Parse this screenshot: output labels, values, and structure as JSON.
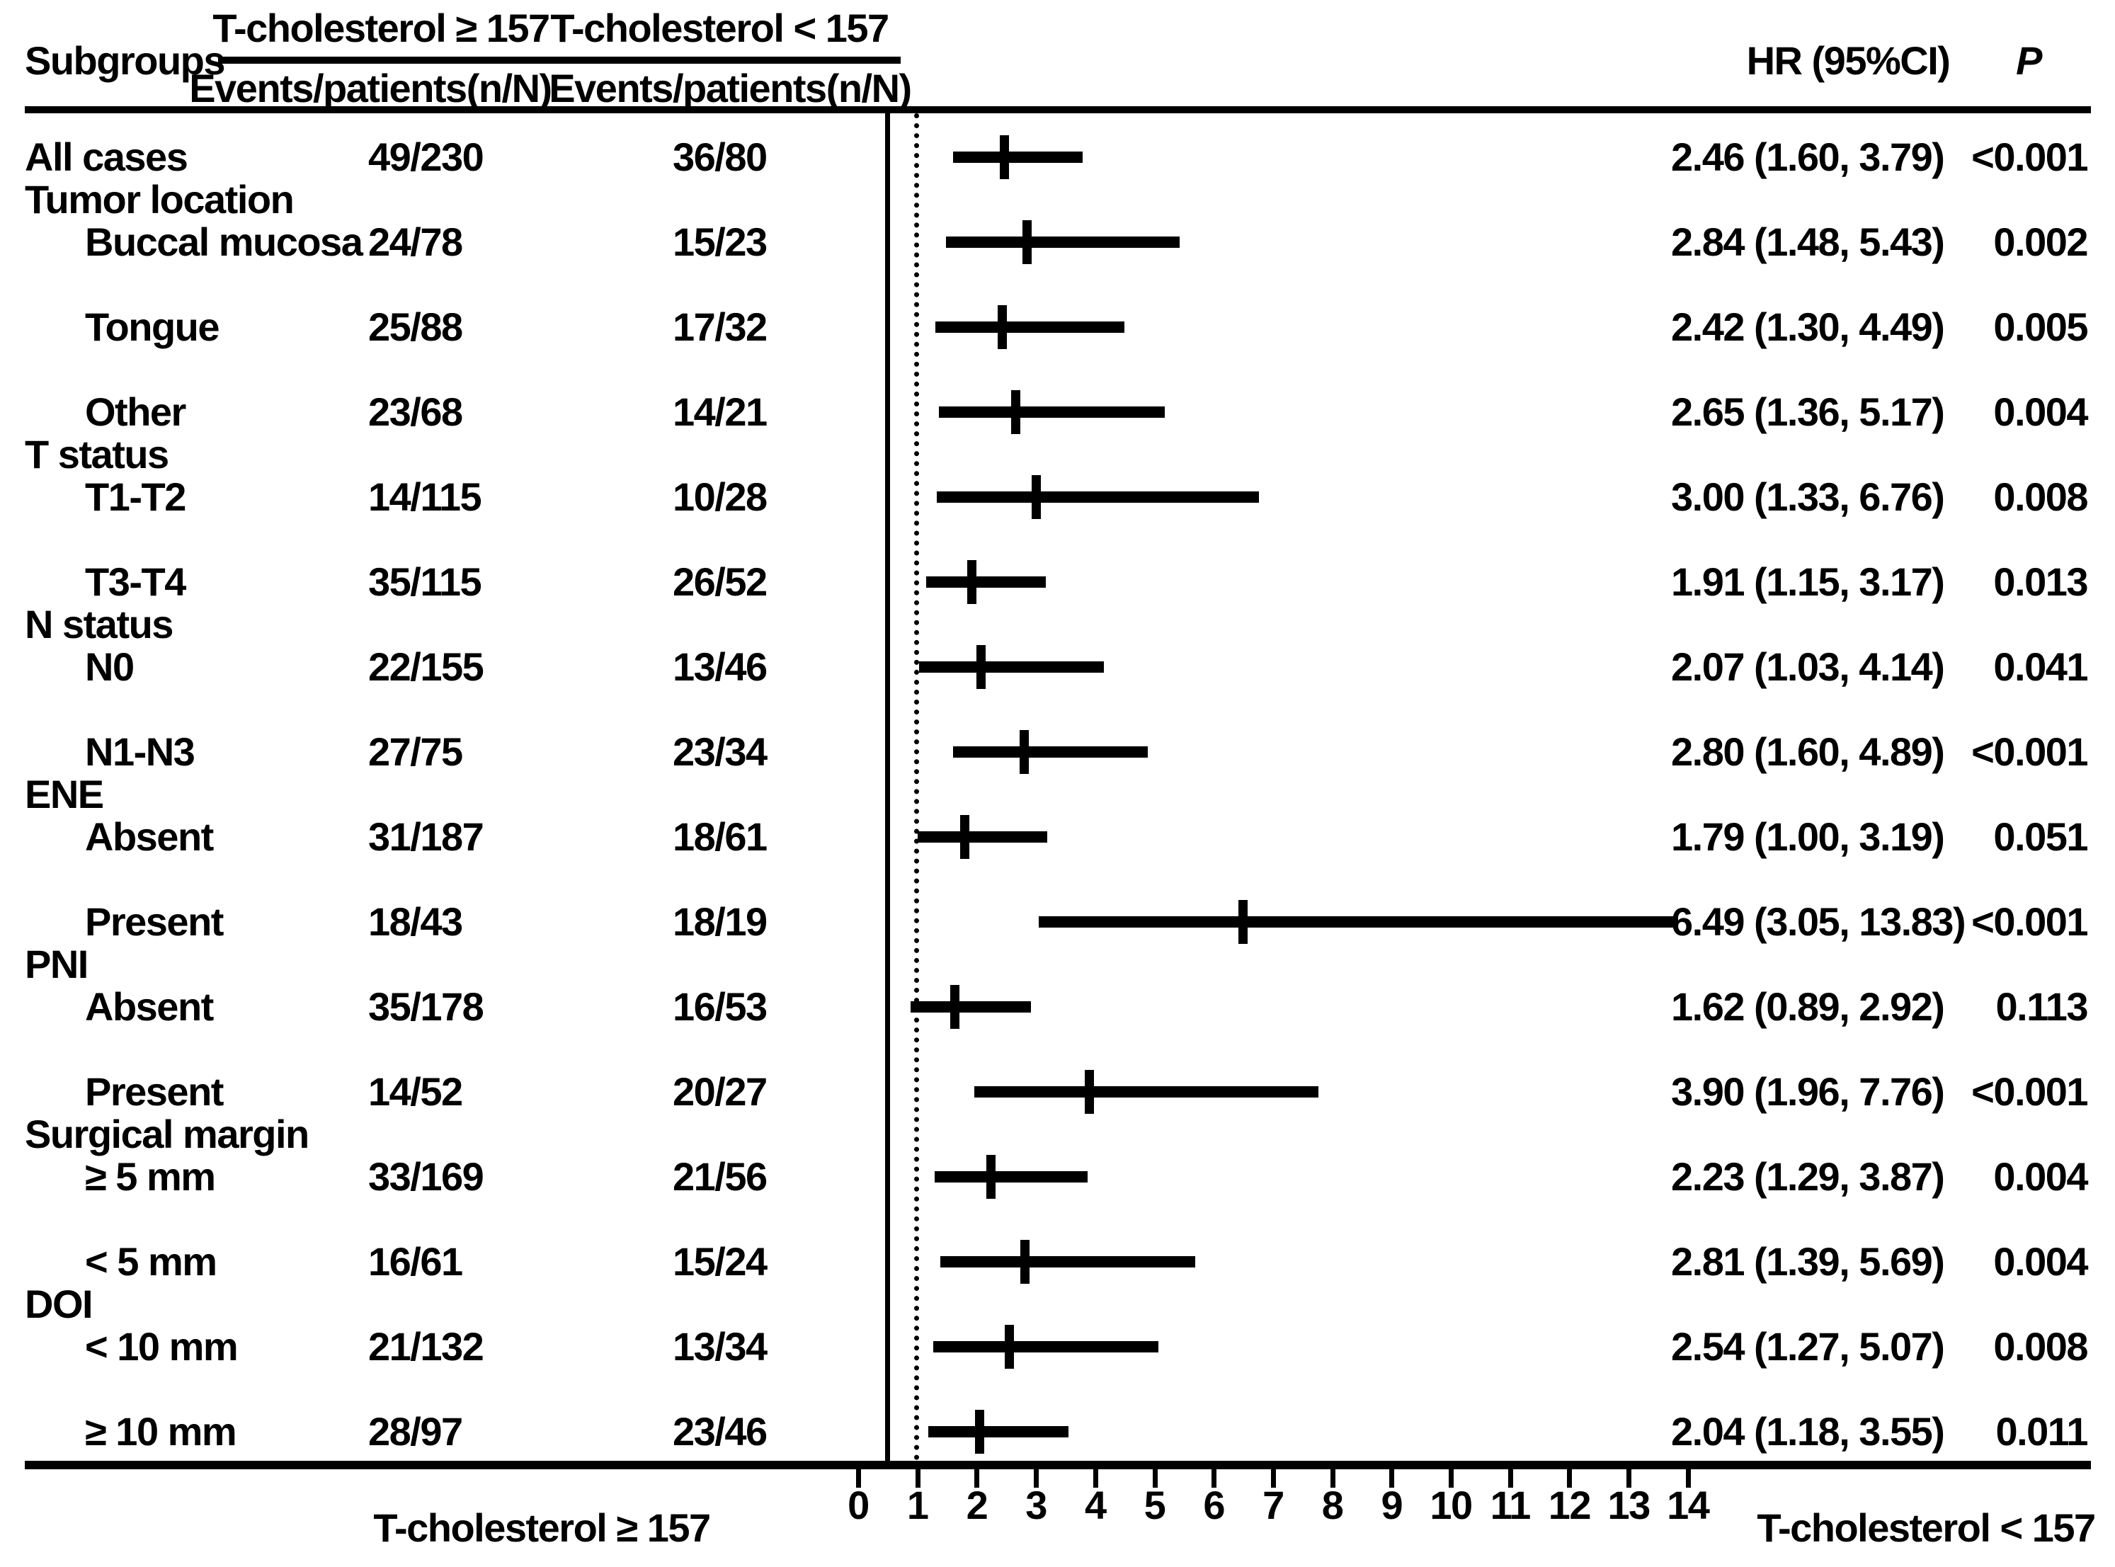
{
  "colors": {
    "ink": "#000000",
    "background": "#ffffff"
  },
  "header": {
    "subgroups_label": "Subgroups",
    "group1_label": "T-cholesterol ≥ 157",
    "group2_label": "T-cholesterol < 157",
    "events_label1": "Events/patients(n/N)",
    "events_label2": "Events/patients(n/N)",
    "hr_label": "HR (95%CI)",
    "p_label": "P"
  },
  "footer": {
    "left_label": "T-cholesterol ≥ 157",
    "right_label": "T-cholesterol < 157"
  },
  "chart_data": {
    "type": "forest",
    "xlabel_ticks": [
      "0",
      "1",
      "2",
      "3",
      "4",
      "5",
      "6",
      "7",
      "8",
      "9",
      "10",
      "11",
      "12",
      "13",
      "14"
    ],
    "x_axis": {
      "min": 0,
      "max": 14,
      "reference_line": 1.0,
      "grid": false
    },
    "columns": [
      "Subgroups",
      "Events/patients(n/N) T-cholesterol ≥ 157",
      "Events/patients(n/N) T-cholesterol < 157",
      "HR (95%CI)",
      "P"
    ],
    "rows": [
      {
        "type": "data",
        "label": "All cases",
        "indent": 0,
        "events_ge157": "49/230",
        "events_lt157": "36/80",
        "hr": 2.46,
        "ci_low": 1.6,
        "ci_high": 3.79,
        "hr_ci_text": "2.46 (1.60, 3.79)",
        "p": "<0.001"
      },
      {
        "type": "category",
        "label": "Tumor location"
      },
      {
        "type": "data",
        "label": "Buccal mucosa",
        "indent": 1,
        "events_ge157": "24/78",
        "events_lt157": "15/23",
        "hr": 2.84,
        "ci_low": 1.48,
        "ci_high": 5.43,
        "hr_ci_text": "2.84 (1.48, 5.43)",
        "p": "0.002"
      },
      {
        "type": "data",
        "label": "Tongue",
        "indent": 1,
        "events_ge157": "25/88",
        "events_lt157": "17/32",
        "hr": 2.42,
        "ci_low": 1.3,
        "ci_high": 4.49,
        "hr_ci_text": "2.42 (1.30, 4.49)",
        "p": "0.005"
      },
      {
        "type": "data",
        "label": "Other",
        "indent": 1,
        "events_ge157": "23/68",
        "events_lt157": "14/21",
        "hr": 2.65,
        "ci_low": 1.36,
        "ci_high": 5.17,
        "hr_ci_text": "2.65 (1.36, 5.17)",
        "p": "0.004"
      },
      {
        "type": "category",
        "label": "T status"
      },
      {
        "type": "data",
        "label": "T1-T2",
        "indent": 1,
        "events_ge157": "14/115",
        "events_lt157": "10/28",
        "hr": 3.0,
        "ci_low": 1.33,
        "ci_high": 6.76,
        "hr_ci_text": "3.00 (1.33, 6.76)",
        "p": "0.008"
      },
      {
        "type": "data",
        "label": "T3-T4",
        "indent": 1,
        "events_ge157": "35/115",
        "events_lt157": "26/52",
        "hr": 1.91,
        "ci_low": 1.15,
        "ci_high": 3.17,
        "hr_ci_text": "1.91 (1.15, 3.17)",
        "p": "0.013"
      },
      {
        "type": "category",
        "label": "N status"
      },
      {
        "type": "data",
        "label": "N0",
        "indent": 1,
        "events_ge157": "22/155",
        "events_lt157": "13/46",
        "hr": 2.07,
        "ci_low": 1.03,
        "ci_high": 4.14,
        "hr_ci_text": "2.07 (1.03, 4.14)",
        "p": "0.041"
      },
      {
        "type": "data",
        "label": "N1-N3",
        "indent": 1,
        "events_ge157": "27/75",
        "events_lt157": "23/34",
        "hr": 2.8,
        "ci_low": 1.6,
        "ci_high": 4.89,
        "hr_ci_text": "2.80 (1.60, 4.89)",
        "p": "<0.001"
      },
      {
        "type": "category",
        "label": "ENE"
      },
      {
        "type": "data",
        "label": "Absent",
        "indent": 1,
        "events_ge157": "31/187",
        "events_lt157": "18/61",
        "hr": 1.79,
        "ci_low": 1.0,
        "ci_high": 3.19,
        "hr_ci_text": "1.79 (1.00, 3.19)",
        "p": "0.051"
      },
      {
        "type": "data",
        "label": "Present",
        "indent": 1,
        "events_ge157": "18/43",
        "events_lt157": "18/19",
        "hr": 6.49,
        "ci_low": 3.05,
        "ci_high": 13.83,
        "hr_ci_text": "6.49 (3.05, 13.83)",
        "p": "<0.001"
      },
      {
        "type": "category",
        "label": "PNI"
      },
      {
        "type": "data",
        "label": "Absent",
        "indent": 1,
        "events_ge157": "35/178",
        "events_lt157": "16/53",
        "hr": 1.62,
        "ci_low": 0.89,
        "ci_high": 2.92,
        "hr_ci_text": "1.62 (0.89, 2.92)",
        "p": "0.113"
      },
      {
        "type": "data",
        "label": "Present",
        "indent": 1,
        "events_ge157": "14/52",
        "events_lt157": "20/27",
        "hr": 3.9,
        "ci_low": 1.96,
        "ci_high": 7.76,
        "hr_ci_text": "3.90 (1.96, 7.76)",
        "p": "<0.001"
      },
      {
        "type": "category",
        "label": "Surgical margin"
      },
      {
        "type": "data",
        "label": "≥ 5 mm",
        "indent": 1,
        "events_ge157": "33/169",
        "events_lt157": "21/56",
        "hr": 2.23,
        "ci_low": 1.29,
        "ci_high": 3.87,
        "hr_ci_text": "2.23 (1.29, 3.87)",
        "p": "0.004"
      },
      {
        "type": "data",
        "label": "< 5 mm",
        "indent": 1,
        "events_ge157": "16/61",
        "events_lt157": "15/24",
        "hr": 2.81,
        "ci_low": 1.39,
        "ci_high": 5.69,
        "hr_ci_text": "2.81 (1.39, 5.69)",
        "p": "0.004"
      },
      {
        "type": "category",
        "label": "DOI"
      },
      {
        "type": "data",
        "label": "< 10 mm",
        "indent": 1,
        "events_ge157": "21/132",
        "events_lt157": "13/34",
        "hr": 2.54,
        "ci_low": 1.27,
        "ci_high": 5.07,
        "hr_ci_text": "2.54 (1.27, 5.07)",
        "p": "0.008"
      },
      {
        "type": "data",
        "label": "≥ 10 mm",
        "indent": 1,
        "events_ge157": "28/97",
        "events_lt157": "23/46",
        "hr": 2.04,
        "ci_low": 1.18,
        "ci_high": 3.55,
        "hr_ci_text": "2.04 (1.18, 3.55)",
        "p": "0.011"
      }
    ]
  }
}
